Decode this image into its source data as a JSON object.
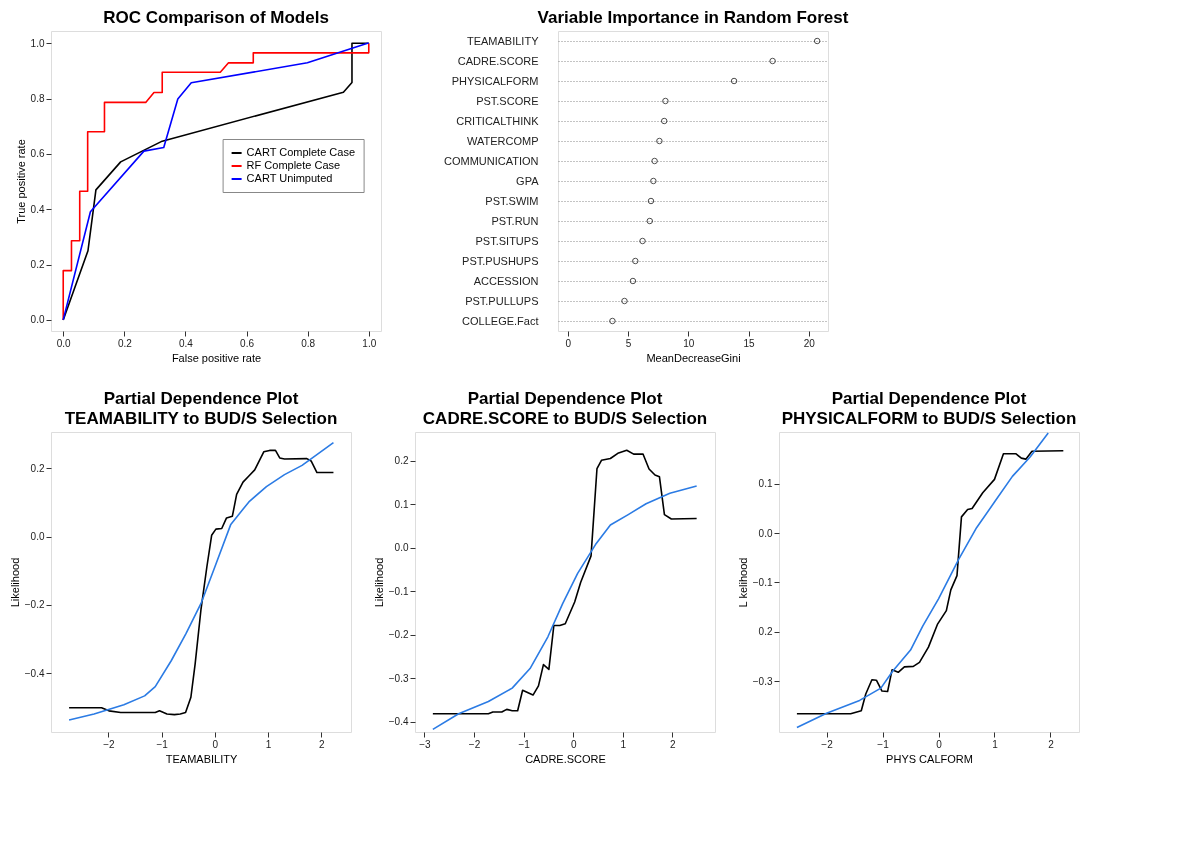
{
  "chart_data": [
    {
      "type": "line",
      "title": "ROC Comparison of Models",
      "xlabel": "False positive rate",
      "ylabel": "True positive rate",
      "legend": "right",
      "grid": false,
      "xlim": [
        -0.04,
        1.04
      ],
      "ylim": [
        -0.04,
        1.044
      ],
      "xticks": [
        {
          "value": 0,
          "label": "0.0"
        },
        0.2,
        0.4,
        0.6,
        0.8,
        {
          "value": 1,
          "label": "1.0"
        }
      ],
      "yticks": [
        {
          "value": 0,
          "label": "0.0"
        },
        0.2,
        0.4,
        0.6,
        0.8,
        {
          "value": 1,
          "label": "1.0"
        }
      ],
      "series": [
        {
          "name": "CART Complete Case",
          "color": "#000000",
          "x": [
            0,
            0.081,
            0.107,
            0.188,
            0.324,
            0.917,
            0.945,
            0.945,
            1
          ],
          "values": [
            0,
            0.25,
            0.47,
            0.571,
            0.646,
            0.823,
            0.858,
            1.0,
            1.0
          ]
        },
        {
          "name": "RF Complete Case",
          "color": "#ff0000",
          "x": [
            0,
            0,
            0.027,
            0.027,
            0.054,
            0.054,
            0.08,
            0.08,
            0.135,
            0.135,
            0.27,
            0.297,
            0.324,
            0.324,
            0.514,
            0.541,
            0.622,
            0.622,
            1,
            1
          ],
          "values": [
            0,
            0.178,
            0.178,
            0.286,
            0.286,
            0.465,
            0.465,
            0.68,
            0.68,
            0.786,
            0.786,
            0.822,
            0.822,
            0.895,
            0.895,
            0.929,
            0.929,
            0.965,
            0.965,
            1.0
          ]
        },
        {
          "name": "CART Unimputed",
          "color": "#0000ff",
          "x": [
            0,
            0.089,
            0.264,
            0.329,
            0.375,
            0.419,
            0.799,
            0.996,
            1
          ],
          "values": [
            0,
            0.391,
            0.61,
            0.623,
            0.798,
            0.857,
            0.929,
            1.0,
            1.0
          ]
        }
      ]
    },
    {
      "type": "scatter",
      "title": "Variable Importance in Random Forest",
      "xlabel": "MeanDecreaseGini",
      "orientation": "horizontal",
      "grid": "y",
      "marker": "circle",
      "categories": [
        "TEAMABILITY",
        "CADRE.SCORE",
        "PHYSICALFORM",
        "PST.SCORE",
        "CRITICALTHINK",
        "WATERCOMP",
        "COMMUNICATION",
        "GPA",
        "PST.SWIM",
        "PST.RUN",
        "PST.SITUPS",
        "PST.PUSHUPS",
        "ACCESSION",
        "PST.PULLUPS",
        "COLLEGE.Fact"
      ],
      "xlim": [
        -0.82,
        21.6
      ],
      "xticks": [
        0,
        5,
        10,
        15,
        20
      ],
      "series": [
        {
          "color": "#000000",
          "values": [
            20.7,
            17.0,
            13.8,
            8.1,
            8.0,
            7.6,
            7.2,
            7.1,
            6.9,
            6.8,
            6.2,
            5.6,
            5.4,
            4.7,
            3.7
          ]
        }
      ]
    },
    {
      "type": "line",
      "title": "Partial Dependence Plot",
      "subtitle": "TEAMABILITY to BUD/S Selection",
      "xlabel": "TEAMABILITY",
      "ylabel": "Likelihood",
      "grid": false,
      "xlim": [
        -3.08,
        2.56
      ],
      "ylim": [
        -0.573,
        0.307
      ],
      "xticks": [
        -2,
        -1,
        0,
        1,
        2
      ],
      "yticks": [
        -0.4,
        -0.2,
        {
          "value": 0,
          "label": "0.0"
        },
        0.2
      ],
      "series": [
        {
          "color": "#000000",
          "x": [
            -2.74,
            -2.13,
            -1.99,
            -1.77,
            -1.32,
            -1.12,
            -1.04,
            -0.9,
            -0.76,
            -0.65,
            -0.55,
            -0.45,
            -0.37,
            -0.26,
            -0.15,
            -0.06,
            0.02,
            0.13,
            0.22,
            0.33,
            0.41,
            0.53,
            0.64,
            0.75,
            0.92,
            1.03,
            1.14,
            1.22,
            1.31,
            1.73,
            1.81,
            1.92,
            2.23
          ],
          "values": [
            -0.502,
            -0.502,
            -0.511,
            -0.516,
            -0.516,
            -0.516,
            -0.511,
            -0.52,
            -0.522,
            -0.52,
            -0.516,
            -0.471,
            -0.373,
            -0.213,
            -0.089,
            0.004,
            0.022,
            0.024,
            0.055,
            0.06,
            0.124,
            0.16,
            0.178,
            0.196,
            0.249,
            0.253,
            0.253,
            0.231,
            0.228,
            0.229,
            0.222,
            0.188,
            0.188
          ]
        },
        {
          "color": "#2b7be4",
          "x": [
            -2.74,
            -2.27,
            -1.71,
            -1.32,
            -1.12,
            -0.82,
            -0.54,
            -0.26,
            0,
            0.3,
            0.64,
            0.97,
            1.31,
            1.64,
            2.23
          ],
          "values": [
            -0.538,
            -0.52,
            -0.493,
            -0.467,
            -0.44,
            -0.364,
            -0.284,
            -0.196,
            -0.089,
            0.036,
            0.102,
            0.147,
            0.182,
            0.209,
            0.276
          ]
        }
      ]
    },
    {
      "type": "line",
      "title": "Partial Dependence Plot",
      "subtitle": "CADRE.SCORE to BUD/S Selection",
      "xlabel": "CADRE.SCORE",
      "ylabel": "Likelihood",
      "grid": false,
      "xlim": [
        -3.19,
        2.86
      ],
      "ylim": [
        -0.424,
        0.266
      ],
      "xticks": [
        -3,
        -2,
        -1,
        0,
        1,
        2
      ],
      "yticks": [
        -0.4,
        -0.3,
        -0.2,
        -0.1,
        {
          "value": 0,
          "label": "0.0"
        },
        0.1,
        0.2
      ],
      "series": [
        {
          "color": "#000000",
          "x": [
            -2.83,
            -1.71,
            -1.62,
            -1.44,
            -1.34,
            -1.23,
            -1.12,
            -1.02,
            -0.81,
            -0.7,
            -0.6,
            -0.49,
            -0.39,
            -0.27,
            -0.16,
            0.03,
            0.15,
            0.36,
            0.48,
            0.57,
            0.75,
            0.9,
            1.08,
            1.22,
            1.41,
            1.53,
            1.65,
            1.74,
            1.84,
            1.98,
            2.49
          ],
          "values": [
            -0.382,
            -0.382,
            -0.378,
            -0.378,
            -0.372,
            -0.375,
            -0.375,
            -0.328,
            -0.339,
            -0.318,
            -0.269,
            -0.28,
            -0.179,
            -0.179,
            -0.175,
            -0.125,
            -0.08,
            -0.019,
            0.182,
            0.201,
            0.205,
            0.217,
            0.224,
            0.215,
            0.215,
            0.181,
            0.167,
            0.163,
            0.076,
            0.066,
            0.067
          ]
        },
        {
          "color": "#2b7be4",
          "x": [
            -2.83,
            -2.31,
            -1.71,
            -1.23,
            -0.87,
            -0.51,
            -0.21,
            0.09,
            0.45,
            0.75,
            1.11,
            1.47,
            1.95,
            2.49
          ],
          "values": [
            -0.418,
            -0.382,
            -0.354,
            -0.323,
            -0.278,
            -0.205,
            -0.128,
            -0.059,
            0.007,
            0.052,
            0.076,
            0.101,
            0.125,
            0.142
          ]
        }
      ]
    },
    {
      "type": "line",
      "title": "Partial Dependence Plot",
      "subtitle": "PHYSICALFORM to BUD/S Selection",
      "xlabel": "PHYS CALFORM",
      "ylabel": "L kelihood",
      "grid": false,
      "xlim": [
        -2.85,
        2.51
      ],
      "ylim": [
        -0.403,
        0.205
      ],
      "xticks": [
        -2,
        -1,
        0,
        1,
        2
      ],
      "yticks": [
        -0.3,
        {
          "value": -0.2,
          "label": "0.2"
        },
        -0.1,
        {
          "value": 0,
          "label": "0.0"
        },
        0.1
      ],
      "series": [
        {
          "color": "#000000",
          "x": [
            -2.53,
            -1.57,
            -1.38,
            -1.3,
            -1.19,
            -1.11,
            -1.01,
            -0.91,
            -0.83,
            -0.72,
            -0.61,
            -0.45,
            -0.34,
            -0.18,
            -0.02,
            0.14,
            0.22,
            0.33,
            0.41,
            0.52,
            0.6,
            0.79,
            1.0,
            1.16,
            1.38,
            1.48,
            1.56,
            1.67,
            2.23
          ],
          "values": [
            -0.366,
            -0.366,
            -0.36,
            -0.326,
            -0.297,
            -0.298,
            -0.32,
            -0.321,
            -0.277,
            -0.282,
            -0.271,
            -0.27,
            -0.262,
            -0.231,
            -0.185,
            -0.157,
            -0.115,
            -0.086,
            0.033,
            0.048,
            0.05,
            0.082,
            0.109,
            0.161,
            0.161,
            0.152,
            0.15,
            0.166,
            0.167
          ]
        },
        {
          "color": "#2b7be4",
          "x": [
            -2.53,
            -2.0,
            -1.41,
            -1.03,
            -0.82,
            -0.5,
            -0.28,
            0,
            0.36,
            0.68,
            1.0,
            1.32,
            1.64,
            1.96
          ],
          "values": [
            -0.394,
            -0.365,
            -0.339,
            -0.314,
            -0.28,
            -0.237,
            -0.188,
            -0.133,
            -0.053,
            0.011,
            0.063,
            0.115,
            0.155,
            0.203
          ]
        }
      ]
    }
  ]
}
